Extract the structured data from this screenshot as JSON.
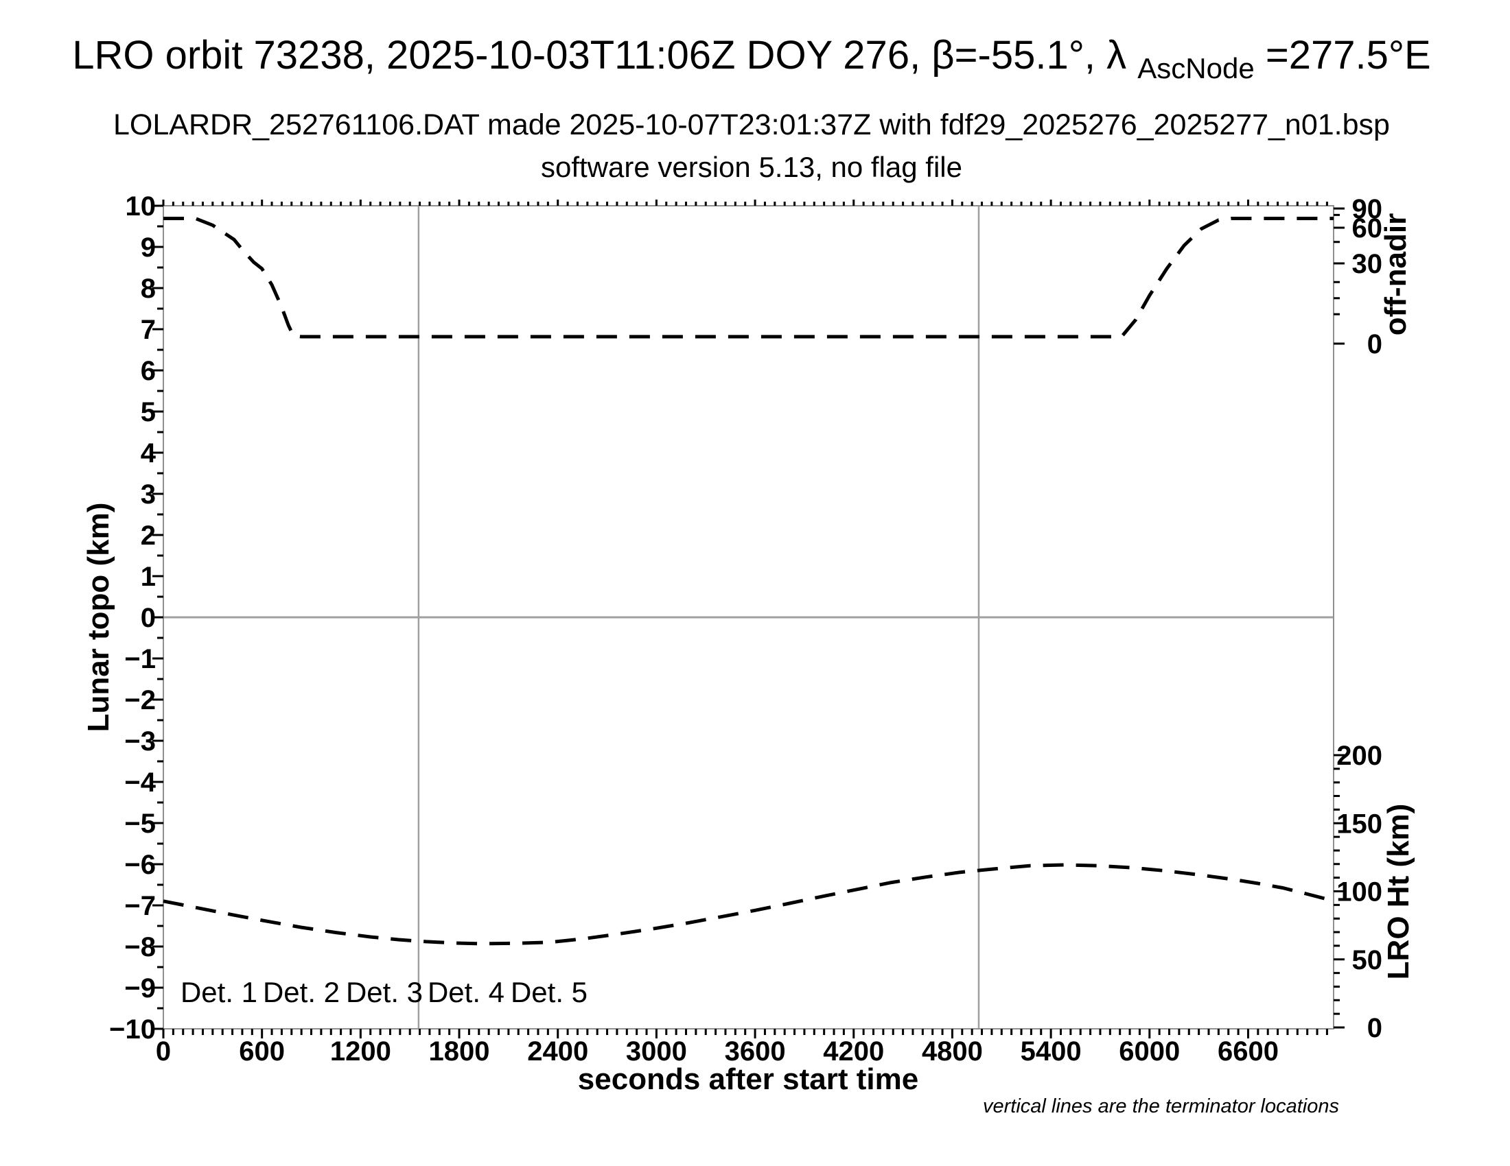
{
  "header": {
    "title_prefix": "LRO orbit 73238, 2025-10-03T11:06Z DOY 276, β=-55.1°, λ",
    "title_sub": "AscNode",
    "title_suffix": "=277.5°E",
    "subtitle": "LOLARDR_252761106.DAT made 2025-10-07T23:01:37Z with fdf29_2025276_2025277_n01.bsp",
    "version_line": "software version 5.13, no flag file"
  },
  "chart_data": {
    "type": "line",
    "title": "LRO orbit 73238, 2025-10-03T11:06Z DOY 276, β=-55.1°, λAscNode=277.5°E",
    "x_axis": {
      "label": "seconds after start time",
      "min": 0,
      "max": 7120,
      "major_tick": 600,
      "minor_tick": 60,
      "tick_labels": [
        0,
        600,
        1200,
        1800,
        2400,
        3000,
        3600,
        4200,
        4800,
        5400,
        6000,
        6600
      ]
    },
    "y_left": {
      "label": "Lunar topo (km)",
      "min": -10,
      "max": 10,
      "major_tick": 1,
      "minor_tick": 0.5
    },
    "y_right_top": {
      "label": "off-nadir",
      "major_ticks": [
        90,
        60,
        30,
        0
      ],
      "minor_ticks": [
        80,
        48,
        23,
        17,
        11
      ]
    },
    "y_right_bottom": {
      "label": "LRO Ht (km)",
      "min": 0,
      "max": 200,
      "major_ticks": [
        200,
        150,
        100,
        50,
        0
      ],
      "minor_step": 10
    },
    "terminators_s": [
      1553,
      4961
    ],
    "footnote": "vertical lines are the terminator locations",
    "legend": [
      {
        "label": "Det. 1",
        "color": "#000000"
      },
      {
        "label": "Det. 2",
        "color": "#1414ff"
      },
      {
        "label": "Det. 3",
        "color": "#00e010"
      },
      {
        "label": "Det. 4",
        "color": "#ffa500"
      },
      {
        "label": "Det. 5",
        "color": "#ff0f00"
      }
    ],
    "series": [
      {
        "name": "off-nadir angle",
        "axis": "y_right_top",
        "units": "deg",
        "color": "#000000",
        "style": "dashed",
        "points": [
          [
            0,
            74.5
          ],
          [
            196,
            74.5
          ],
          [
            300,
            64
          ],
          [
            430,
            50
          ],
          [
            490,
            40
          ],
          [
            550,
            31
          ],
          [
            600,
            28
          ],
          [
            660,
            22
          ],
          [
            718,
            14
          ],
          [
            760,
            7
          ],
          [
            790,
            3
          ],
          [
            840,
            2.6
          ],
          [
            5830,
            2.6
          ],
          [
            5917,
            9
          ],
          [
            6000,
            18
          ],
          [
            6105,
            28
          ],
          [
            6210,
            45
          ],
          [
            6315,
            59
          ],
          [
            6420,
            72
          ],
          [
            6500,
            74.5
          ],
          [
            7120,
            74.5
          ]
        ]
      },
      {
        "name": "LRO height",
        "axis": "y_right_bottom",
        "units": "km",
        "color": "#000000",
        "style": "dashed",
        "points": [
          [
            0,
            92.8
          ],
          [
            200,
            88
          ],
          [
            430,
            82.5
          ],
          [
            640,
            77.8
          ],
          [
            840,
            73.5
          ],
          [
            1050,
            69.7
          ],
          [
            1260,
            66.5
          ],
          [
            1430,
            64.5
          ],
          [
            1600,
            63
          ],
          [
            1770,
            62
          ],
          [
            1930,
            61.5
          ],
          [
            2140,
            61.8
          ],
          [
            2350,
            62.5
          ],
          [
            2560,
            65.2
          ],
          [
            2760,
            68.5
          ],
          [
            2970,
            72.3
          ],
          [
            3180,
            76.5
          ],
          [
            3390,
            81.2
          ],
          [
            3600,
            86
          ],
          [
            3810,
            91.2
          ],
          [
            4020,
            96.5
          ],
          [
            4230,
            101.6
          ],
          [
            4430,
            106.5
          ],
          [
            4640,
            110.5
          ],
          [
            4850,
            114
          ],
          [
            5060,
            116.5
          ],
          [
            5270,
            118.8
          ],
          [
            5480,
            119.4
          ],
          [
            5690,
            118.8
          ],
          [
            5900,
            117.3
          ],
          [
            6100,
            115
          ],
          [
            6310,
            112
          ],
          [
            6520,
            108.5
          ],
          [
            6660,
            105.8
          ],
          [
            6810,
            102.5
          ],
          [
            6960,
            98
          ],
          [
            7120,
            93
          ]
        ]
      }
    ]
  },
  "colors": {
    "frame": "#909090",
    "grid": "#a0a0a0",
    "curve": "#000000"
  }
}
